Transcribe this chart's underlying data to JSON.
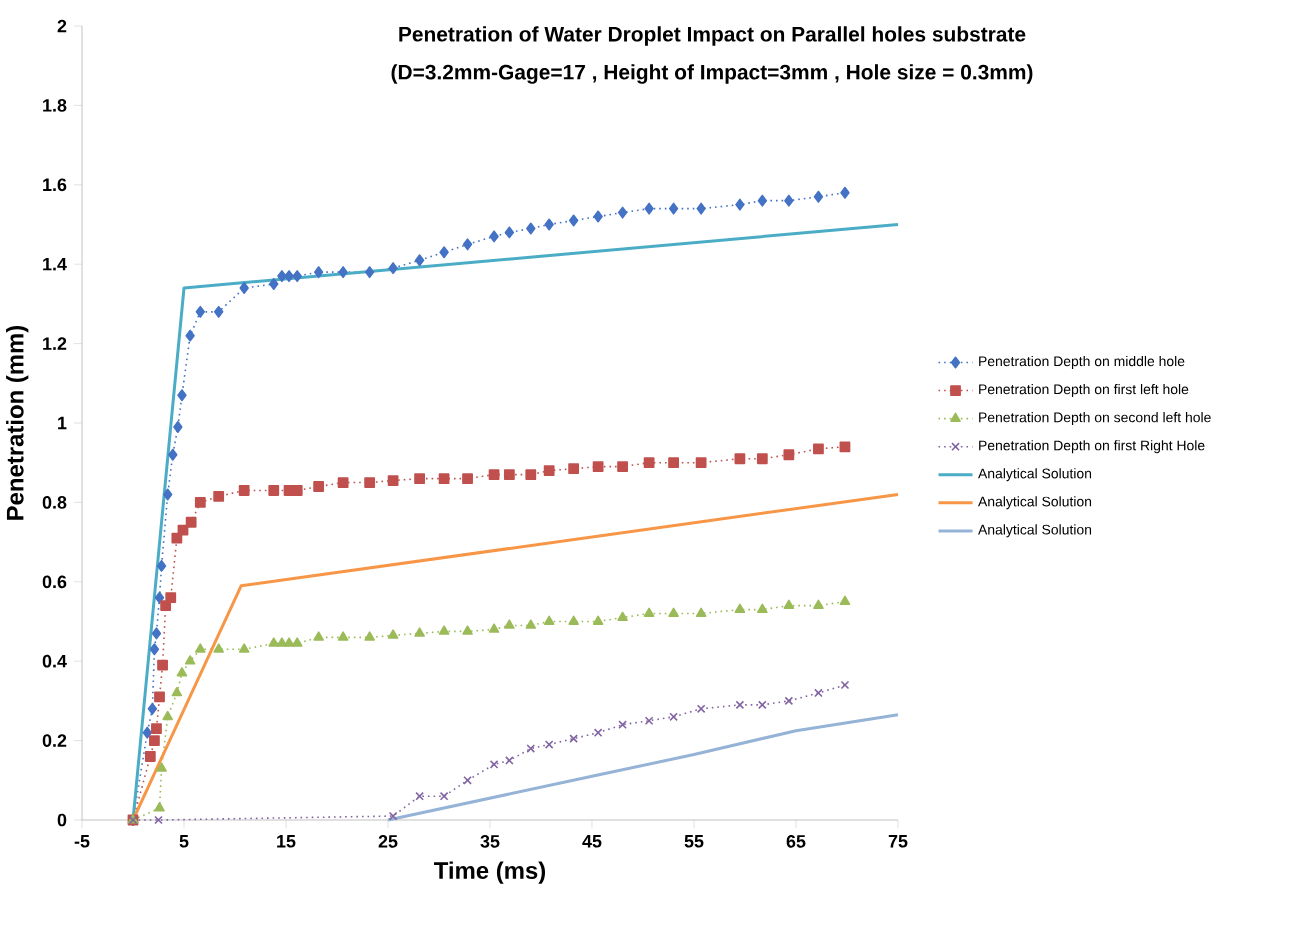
{
  "chart_data": {
    "type": "line",
    "title": "Penetration of Water Droplet Impact on Parallel holes substrate",
    "subtitle": "(D=3.2mm-Gage=17 , Height of Impact=3mm , Hole size = 0.3mm)",
    "xlabel": "Time (ms)",
    "ylabel": "Penetration (mm)",
    "xlim": [
      -5,
      75
    ],
    "xticks": [
      -5,
      5,
      15,
      25,
      35,
      45,
      55,
      65,
      75
    ],
    "ylim": [
      0,
      2
    ],
    "yticks": [
      0,
      0.2,
      0.4,
      0.6,
      0.8,
      1,
      1.2,
      1.4,
      1.6,
      1.8,
      2
    ],
    "grid": false,
    "legend": "right",
    "series": [
      {
        "name": "Penetration Depth on middle hole",
        "color": "#4472c4",
        "marker": "diamond",
        "line_style": "dotted",
        "x": [
          0,
          1.4,
          1.9,
          2.1,
          2.3,
          2.6,
          2.8,
          3.4,
          3.9,
          4.4,
          4.8,
          5.6,
          6.6,
          8.4,
          10.9,
          13.8,
          14.6,
          15.3,
          16.1,
          18.2,
          20.6,
          23.2,
          25.5,
          28.1,
          30.5,
          32.8,
          35.4,
          36.9,
          39.0,
          40.8,
          43.2,
          45.6,
          48.0,
          50.6,
          53.0,
          55.7,
          59.5,
          61.7,
          64.3,
          67.2,
          69.8
        ],
        "values": [
          0,
          0.22,
          0.28,
          0.43,
          0.47,
          0.56,
          0.64,
          0.82,
          0.92,
          0.99,
          1.07,
          1.22,
          1.28,
          1.28,
          1.34,
          1.35,
          1.37,
          1.37,
          1.37,
          1.38,
          1.38,
          1.38,
          1.39,
          1.41,
          1.43,
          1.45,
          1.47,
          1.48,
          1.49,
          1.5,
          1.51,
          1.52,
          1.53,
          1.54,
          1.54,
          1.54,
          1.55,
          1.56,
          1.56,
          1.57,
          1.58
        ]
      },
      {
        "name": "Penetration Depth on first left hole",
        "color": "#c0504d",
        "marker": "square",
        "line_style": "dotted",
        "x": [
          0,
          1.7,
          2.1,
          2.3,
          2.6,
          2.9,
          3.2,
          3.7,
          4.3,
          4.9,
          5.7,
          6.6,
          8.4,
          10.9,
          13.8,
          15.3,
          16.1,
          18.2,
          20.6,
          23.2,
          25.5,
          28.1,
          30.5,
          32.8,
          35.4,
          36.9,
          39.0,
          40.8,
          43.2,
          45.6,
          48.0,
          50.6,
          53.0,
          55.7,
          59.5,
          61.7,
          64.3,
          67.2,
          69.8
        ],
        "values": [
          0,
          0.16,
          0.2,
          0.23,
          0.31,
          0.39,
          0.54,
          0.56,
          0.71,
          0.73,
          0.75,
          0.8,
          0.815,
          0.83,
          0.83,
          0.83,
          0.83,
          0.84,
          0.85,
          0.85,
          0.855,
          0.86,
          0.86,
          0.86,
          0.87,
          0.87,
          0.87,
          0.88,
          0.885,
          0.89,
          0.89,
          0.9,
          0.9,
          0.9,
          0.91,
          0.91,
          0.92,
          0.935,
          0.94
        ]
      },
      {
        "name": "Penetration Depth on second left hole",
        "color": "#9bbb59",
        "marker": "triangle",
        "line_style": "dotted",
        "x": [
          0,
          2.6,
          2.8,
          3.4,
          4.3,
          4.8,
          5.6,
          6.6,
          8.4,
          10.9,
          13.8,
          14.6,
          15.3,
          16.1,
          18.2,
          20.6,
          23.2,
          25.5,
          28.1,
          30.5,
          32.8,
          35.4,
          36.9,
          39.0,
          40.8,
          43.2,
          45.6,
          48.0,
          50.6,
          53.0,
          55.7,
          59.5,
          61.7,
          64.3,
          67.2,
          69.8
        ],
        "values": [
          0,
          0.03,
          0.13,
          0.26,
          0.32,
          0.37,
          0.4,
          0.43,
          0.43,
          0.43,
          0.445,
          0.445,
          0.445,
          0.445,
          0.46,
          0.46,
          0.46,
          0.465,
          0.47,
          0.475,
          0.475,
          0.48,
          0.49,
          0.49,
          0.5,
          0.5,
          0.5,
          0.51,
          0.52,
          0.52,
          0.52,
          0.53,
          0.53,
          0.54,
          0.54,
          0.55
        ]
      },
      {
        "name": "Penetration Depth on first Right Hole",
        "color": "#8064a2",
        "marker": "cross",
        "line_style": "dotted",
        "x": [
          0,
          2.5,
          25.5,
          28.1,
          30.5,
          32.8,
          35.4,
          36.9,
          39.0,
          40.8,
          43.2,
          45.6,
          48.0,
          50.6,
          53.0,
          55.7,
          59.5,
          61.7,
          64.3,
          67.2,
          69.8
        ],
        "values": [
          0,
          0,
          0.01,
          0.06,
          0.06,
          0.1,
          0.14,
          0.15,
          0.18,
          0.19,
          0.205,
          0.22,
          0.24,
          0.25,
          0.26,
          0.28,
          0.29,
          0.29,
          0.3,
          0.32,
          0.34
        ]
      },
      {
        "name": "Analytical Solution",
        "color": "#4bacc6",
        "marker": "none",
        "line_style": "solid",
        "x": [
          0,
          5,
          75
        ],
        "values": [
          0,
          1.34,
          1.5
        ]
      },
      {
        "name": "Analytical Solution",
        "color": "#f79646",
        "marker": "none",
        "line_style": "solid",
        "x": [
          0,
          10.6,
          75
        ],
        "values": [
          0,
          0.59,
          0.82
        ]
      },
      {
        "name": "Analytical Solution",
        "color": "#95b3d7",
        "marker": "none",
        "line_style": "solid",
        "x": [
          25,
          45,
          55,
          65,
          75
        ],
        "values": [
          0,
          0.11,
          0.165,
          0.225,
          0.265
        ]
      }
    ]
  }
}
